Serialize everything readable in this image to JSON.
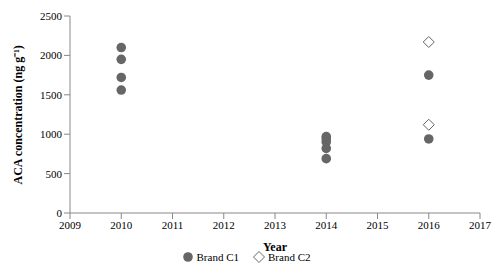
{
  "chart_data": {
    "type": "scatter",
    "x_label": "Year",
    "y_label": "ACA concentration (ng g⁻¹)",
    "xlim": [
      2009,
      2017
    ],
    "xticks": [
      2009,
      2010,
      2011,
      2012,
      2013,
      2014,
      2015,
      2016,
      2017
    ],
    "ylim": [
      0,
      2500
    ],
    "yticks": [
      0,
      500,
      1000,
      1500,
      2000,
      2500
    ],
    "grid": false,
    "legend": "bottom",
    "series": [
      {
        "name": "Brand C1",
        "color": "#666666",
        "marker": "circle",
        "x": [
          2010,
          2010,
          2010,
          2010,
          2014,
          2014,
          2014,
          2014,
          2014,
          2016,
          2016
        ],
        "values": [
          2100,
          1950,
          1720,
          1560,
          970,
          940,
          900,
          820,
          690,
          1750,
          940
        ]
      },
      {
        "name": "Brand C2",
        "color": "#666666",
        "marker": "hollow_diamond",
        "x": [
          2016,
          2016
        ],
        "values": [
          2170,
          1120
        ]
      }
    ]
  }
}
